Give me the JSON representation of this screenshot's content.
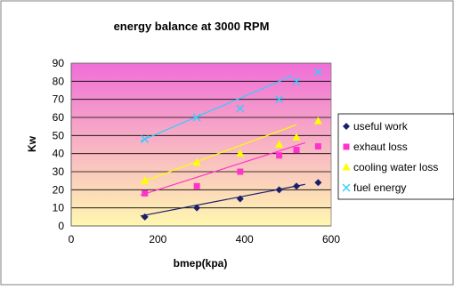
{
  "chart_data": {
    "type": "scatter",
    "title": "energy balance at 3000 RPM",
    "xlabel": "bmep(kpa)",
    "ylabel": "Kw",
    "xlim": [
      0,
      600
    ],
    "ylim": [
      0,
      90
    ],
    "xticks": [
      0,
      200,
      400,
      600
    ],
    "yticks": [
      0,
      10,
      20,
      30,
      40,
      50,
      60,
      70,
      80,
      90
    ],
    "grid": "horizontal",
    "background_gradient": [
      "#f06ed8",
      "#fff7b0"
    ],
    "legend_position": "right",
    "series": [
      {
        "name": "useful work",
        "marker": "diamond",
        "color": "#1a1f6b",
        "x": [
          170,
          290,
          390,
          480,
          520,
          570
        ],
        "y": [
          5,
          10,
          15,
          20,
          22,
          24
        ],
        "trend": {
          "x": [
            160,
            540
          ],
          "y": [
            5.5,
            23
          ]
        }
      },
      {
        "name": "exhaut loss",
        "marker": "square",
        "color": "#ff33cc",
        "x": [
          170,
          290,
          390,
          480,
          520,
          570
        ],
        "y": [
          18,
          22,
          30,
          39,
          42,
          44
        ],
        "trend": {
          "x": [
            160,
            540
          ],
          "y": [
            17,
            46
          ]
        }
      },
      {
        "name": "cooling water loss",
        "marker": "triangle",
        "color": "#ffff00",
        "x": [
          170,
          290,
          390,
          480,
          520,
          570
        ],
        "y": [
          25,
          35,
          40,
          45,
          49,
          58
        ],
        "trend": {
          "x": [
            160,
            520
          ],
          "y": [
            24,
            56
          ]
        }
      },
      {
        "name": "fuel energy",
        "marker": "x",
        "color": "#33ccff",
        "x": [
          170,
          290,
          390,
          480,
          520,
          570
        ],
        "y": [
          48,
          60,
          65,
          70,
          80,
          85
        ],
        "trend": {
          "x": [
            160,
            510
          ],
          "y": [
            47,
            83
          ]
        }
      }
    ]
  }
}
